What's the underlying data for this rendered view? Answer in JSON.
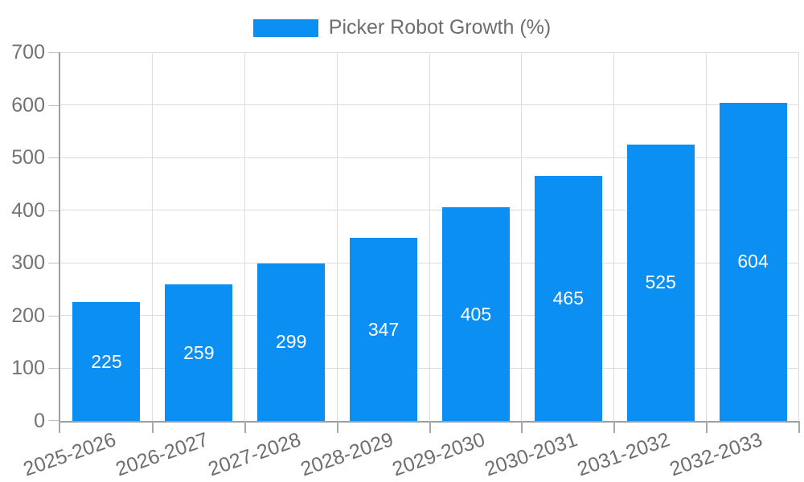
{
  "chart_data": {
    "type": "bar",
    "title": "",
    "legend": {
      "label": "Picker Robot Growth (%)",
      "position": "top-center"
    },
    "categories": [
      "2025-2026",
      "2026-2027",
      "2027-2028",
      "2028-2029",
      "2029-2030",
      "2030-2031",
      "2031-2032",
      "2032-2033"
    ],
    "values": [
      225,
      259,
      299,
      347,
      405,
      465,
      525,
      604
    ],
    "xlabel": "",
    "ylabel": "",
    "ylim": [
      0,
      700
    ],
    "yticks": [
      0,
      100,
      200,
      300,
      400,
      500,
      600,
      700
    ],
    "grid": true,
    "colors": {
      "bar": "#0b8ff2",
      "value_label": "#ffffff",
      "gridline": "#dcdcdc",
      "axis_line": "#9e9e9e",
      "tick_mark": "#c2c2c2",
      "x_tick_mark": "#a8a8a8",
      "axis_label": "#737373",
      "legend_text": "#6e6e6e"
    }
  }
}
